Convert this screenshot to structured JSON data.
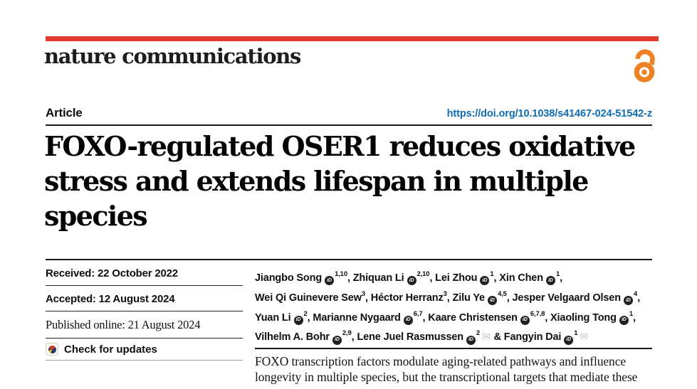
{
  "journal": {
    "name": "nature communications",
    "brand_red": "#e23a2e",
    "open_access_orange": "#ee8122"
  },
  "header": {
    "article_type": "Article",
    "doi": "https://doi.org/10.1038/s41467-024-51542-z",
    "doi_color": "#0e6cb5"
  },
  "article": {
    "title": "FOXO-regulated OSER1 reduces oxidative\nstress and extends lifespan in multiple\nspecies"
  },
  "dates": [
    {
      "label": "Received: 22 October 2022"
    },
    {
      "label": "Accepted: 12 August 2024"
    },
    {
      "label": "Published online: 21 August 2024"
    }
  ],
  "check_for_updates_label": "Check for updates",
  "icons": {
    "open_access": "open-padlock",
    "orcid_glyph": "iD",
    "envelope_glyph": "✉",
    "crossmark": "crossmark-circle"
  },
  "authors": {
    "lines": [
      [
        {
          "name": "Jiangbo Song",
          "orcid": true,
          "sup": "1,10",
          "sep": ", "
        },
        {
          "name": "Zhiquan Li",
          "orcid": true,
          "sup": "2,10",
          "sep": ", "
        },
        {
          "name": "Lei Zhou",
          "orcid": true,
          "sup": "1",
          "sep": ", "
        },
        {
          "name": "Xin Chen",
          "orcid": true,
          "sup": "1",
          "sep": ","
        }
      ],
      [
        {
          "name": "Wei Qi Guinevere Sew",
          "orcid": false,
          "sup": "3",
          "sep": ", "
        },
        {
          "name": "Héctor Herranz",
          "orcid": false,
          "sup": "3",
          "sep": ", "
        },
        {
          "name": "Zilu Ye",
          "orcid": true,
          "sup": "4,5",
          "sep": ", "
        },
        {
          "name": "Jesper Velgaard Olsen",
          "orcid": true,
          "sup": "4",
          "sep": ","
        }
      ],
      [
        {
          "name": "Yuan Li",
          "orcid": true,
          "sup": "2",
          "sep": ", "
        },
        {
          "name": "Marianne Nygaard",
          "orcid": true,
          "sup": "6,7",
          "sep": ", "
        },
        {
          "name": "Kaare Christensen",
          "orcid": true,
          "sup": "6,7,8",
          "sep": ", "
        },
        {
          "name": "Xiaoling Tong",
          "orcid": true,
          "sup": "1",
          "sep": ","
        }
      ],
      [
        {
          "name": "Vilhelm A. Bohr",
          "orcid": true,
          "sup": "2,9",
          "sep": ", "
        },
        {
          "name": "Lene Juel Rasmussen",
          "orcid": true,
          "sup": "2",
          "envelope": true,
          "sep": " & "
        },
        {
          "name": "Fangyin Dai",
          "orcid": true,
          "sup": "1",
          "envelope": true,
          "sep": ""
        }
      ]
    ]
  },
  "abstract": {
    "text": "FOXO transcription factors modulate aging-related pathways and influence\nlongevity in multiple species, but the transcriptional targets that mediate these"
  }
}
